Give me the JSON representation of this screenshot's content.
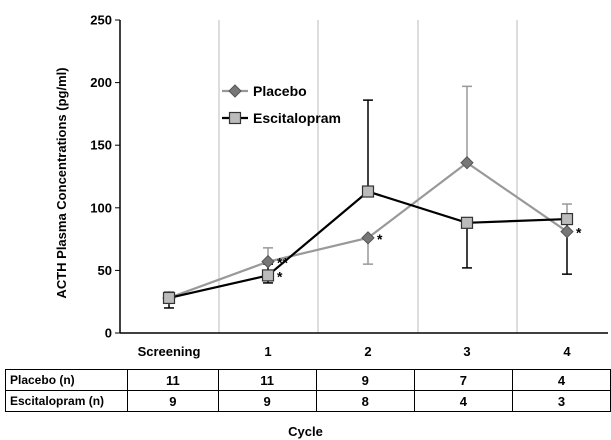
{
  "chart_data": {
    "type": "line",
    "ylabel": "ACTH Plasma Concentrations (pg/ml)",
    "xlabel": "Cycle",
    "categories": [
      "Screening",
      "1",
      "2",
      "3",
      "4"
    ],
    "ylim": [
      0,
      250
    ],
    "yticks": [
      0,
      50,
      100,
      150,
      200,
      250
    ],
    "grid": "vertical",
    "legend": "upper-left",
    "series": [
      {
        "name": "Placebo",
        "color": "#999999",
        "marker": "diamond",
        "values": [
          28,
          57,
          76,
          136,
          81
        ],
        "error_upper": [
          33,
          68,
          null,
          197,
          103
        ],
        "error_lower": [
          null,
          null,
          55,
          null,
          null
        ],
        "annotations": [
          "",
          "**",
          "*",
          "",
          "*"
        ]
      },
      {
        "name": "Escitalopram",
        "color": "#000000",
        "marker": "square",
        "values": [
          28,
          46,
          113,
          88,
          91
        ],
        "error_upper": [
          null,
          55,
          186,
          null,
          null
        ],
        "error_lower": [
          20,
          40,
          null,
          52,
          47
        ],
        "annotations": [
          "",
          "*",
          "",
          "",
          ""
        ]
      }
    ]
  },
  "table": {
    "rows": [
      {
        "label": "Placebo (n)",
        "values": [
          "11",
          "11",
          "9",
          "7",
          "4"
        ]
      },
      {
        "label": "Escitalopram (n)",
        "values": [
          "9",
          "9",
          "8",
          "4",
          "3"
        ]
      }
    ]
  }
}
